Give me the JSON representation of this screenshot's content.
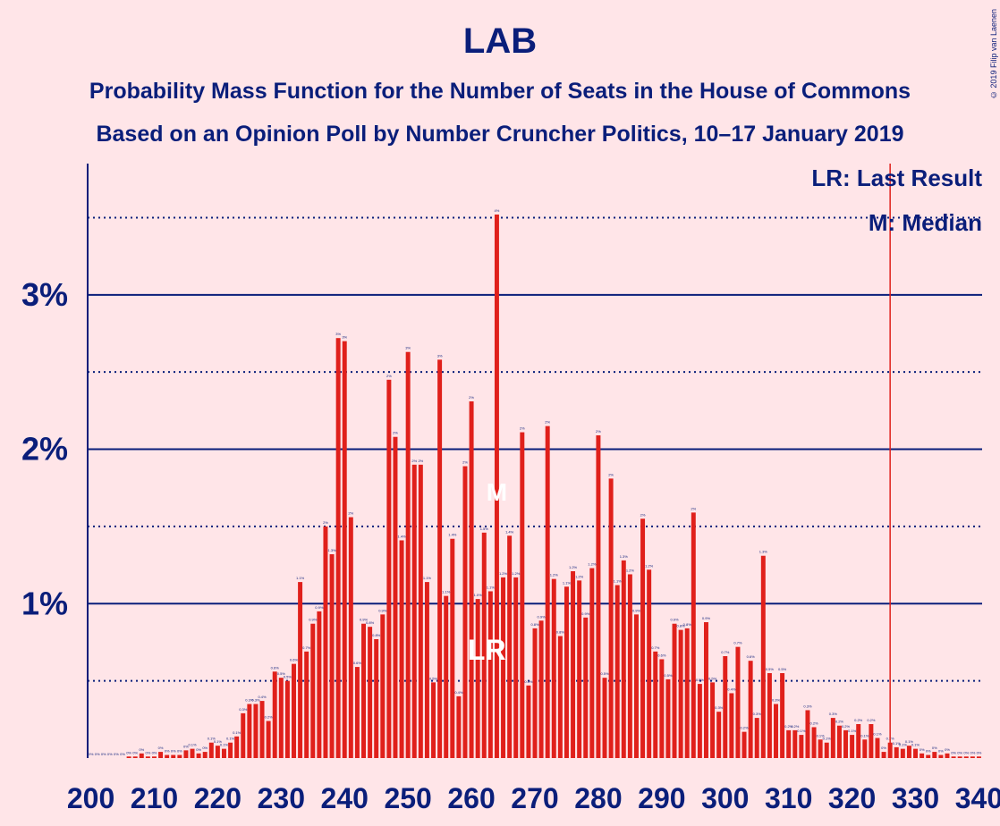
{
  "header": {
    "title": "LAB",
    "subtitle1": "Probability Mass Function for the Number of Seats in the House of Commons",
    "subtitle2": "Based on an Opinion Poll by Number Cruncher Politics, 10–17 January 2019",
    "copyright": "© 2019 Filip van Laenen"
  },
  "legend": {
    "last_result": "LR: Last Result",
    "median": "M: Median"
  },
  "colors": {
    "background": "#FFE5E8",
    "bar": "#E0201B",
    "axis": "#0A1E7A",
    "majority_line": "#E0201B"
  },
  "chart_data": {
    "type": "bar",
    "title": "LAB",
    "xlabel": "",
    "ylabel": "",
    "x": [
      200,
      201,
      202,
      203,
      204,
      205,
      206,
      207,
      208,
      209,
      210,
      211,
      212,
      213,
      214,
      215,
      216,
      217,
      218,
      219,
      220,
      221,
      222,
      223,
      224,
      225,
      226,
      227,
      228,
      229,
      230,
      231,
      232,
      233,
      234,
      235,
      236,
      237,
      238,
      239,
      240,
      241,
      242,
      243,
      244,
      245,
      246,
      247,
      248,
      249,
      250,
      251,
      252,
      253,
      254,
      255,
      256,
      257,
      258,
      259,
      260,
      261,
      262,
      263,
      264,
      265,
      266,
      267,
      268,
      269,
      270,
      271,
      272,
      273,
      274,
      275,
      276,
      277,
      278,
      279,
      280,
      281,
      282,
      283,
      284,
      285,
      286,
      287,
      288,
      289,
      290,
      291,
      292,
      293,
      294,
      295,
      296,
      297,
      298,
      299,
      300,
      301,
      302,
      303,
      304,
      305,
      306,
      307,
      308,
      309,
      310,
      311,
      312,
      313,
      314,
      315,
      316,
      317,
      318,
      319,
      320,
      321,
      322,
      323,
      324,
      325,
      326,
      327,
      328,
      329,
      330,
      331,
      332,
      333,
      334,
      335,
      336,
      337,
      338,
      339,
      340
    ],
    "values": [
      0,
      0,
      0,
      0,
      0,
      0,
      0.01,
      0.01,
      0.03,
      0.01,
      0.01,
      0.04,
      0.02,
      0.02,
      0.02,
      0.05,
      0.06,
      0.03,
      0.04,
      0.1,
      0.08,
      0.06,
      0.1,
      0.14,
      0.29,
      0.35,
      0.35,
      0.37,
      0.24,
      0.56,
      0.52,
      0.5,
      0.61,
      1.14,
      0.69,
      0.87,
      0.95,
      1.5,
      1.32,
      2.72,
      2.7,
      1.56,
      0.59,
      0.87,
      0.85,
      0.77,
      0.93,
      2.45,
      2.08,
      1.41,
      2.63,
      1.9,
      1.9,
      1.14,
      0.49,
      2.58,
      1.05,
      1.42,
      0.4,
      1.89,
      2.31,
      1.03,
      1.46,
      1.08,
      3.52,
      1.17,
      1.44,
      1.17,
      2.11,
      0.47,
      0.84,
      0.89,
      2.15,
      1.16,
      0.79,
      1.11,
      1.21,
      1.15,
      0.91,
      1.23,
      2.09,
      0.52,
      1.81,
      1.12,
      1.28,
      1.19,
      0.93,
      1.55,
      1.22,
      0.69,
      0.64,
      0.51,
      0.87,
      0.83,
      0.84,
      1.59,
      0.48,
      0.88,
      0.49,
      0.3,
      0.66,
      0.42,
      0.72,
      0.17,
      0.63,
      0.26,
      1.31,
      0.55,
      0.35,
      0.55,
      0.18,
      0.18,
      0.15,
      0.31,
      0.2,
      0.12,
      0.1,
      0.26,
      0.21,
      0.18,
      0.15,
      0.22,
      0.12,
      0.22,
      0.13,
      0.04,
      0.1,
      0.07,
      0.06,
      0.08,
      0.06,
      0.03,
      0.02,
      0.04,
      0.02,
      0.03,
      0.01,
      0.01,
      0.01,
      0.01,
      0.01
    ],
    "bar_labels": [
      "0%",
      "0%",
      "0%",
      "0%",
      "0%",
      "0%",
      "0%",
      "0%",
      "0%",
      "0%",
      "0%",
      "0%",
      "0%",
      "0%",
      "0%",
      "0%",
      "0.1%",
      "0%",
      "0%",
      "0.1%",
      "0.1%",
      "0.1%",
      "0.1%",
      "0.1%",
      "0.3%",
      "0.3%",
      "0.3%",
      "0.4%",
      "0.2%",
      "0.6%",
      "0.5%",
      "0.5%",
      "0.6%",
      "1.1%",
      "0.7%",
      "0.9%",
      "0.9%",
      "2%",
      "1.3%",
      "3%",
      "3%",
      "2%",
      "0.6%",
      "0.9%",
      "0.8%",
      "0.8%",
      "0.9%",
      "2%",
      "2%",
      "1.4%",
      "3%",
      "2%",
      "2%",
      "1.1%",
      "0.5%",
      "3%",
      "1.1%",
      "1.4%",
      "0.4%",
      "2%",
      "2%",
      "1.0%",
      "1.5%",
      "1.1%",
      "4%",
      "1.2%",
      "1.4%",
      "1.2%",
      "2%",
      "0.5%",
      "0.8%",
      "0.9%",
      "2%",
      "1.2%",
      "0.8%",
      "1.1%",
      "1.2%",
      "1.2%",
      "0.9%",
      "1.2%",
      "2%",
      "0.5%",
      "2%",
      "1.1%",
      "1.3%",
      "1.2%",
      "0.9%",
      "2%",
      "1.2%",
      "0.7%",
      "0.6%",
      "0.5%",
      "0.9%",
      "0.8%",
      "0.8%",
      "2%",
      "0.5%",
      "0.9%",
      "0.5%",
      "0.3%",
      "0.7%",
      "0.4%",
      "0.7%",
      "0.2%",
      "0.6%",
      "0.3%",
      "1.3%",
      "0.5%",
      "0.3%",
      "0.5%",
      "0.2%",
      "0.2%",
      "0.1%",
      "0.3%",
      "0.2%",
      "0.1%",
      "0.1%",
      "0.3%",
      "0.2%",
      "0.2%",
      "0.1%",
      "0.2%",
      "0.1%",
      "0.2%",
      "0.1%",
      "0%",
      "0.1%",
      "0.1%",
      "0.1%",
      "0.1%",
      "0.1%",
      "0%",
      "0%",
      "0%",
      "0%",
      "0%",
      "0%",
      "0%",
      "0%",
      "0%",
      "0%"
    ],
    "x_ticks": [
      200,
      210,
      220,
      230,
      240,
      250,
      260,
      270,
      280,
      290,
      300,
      310,
      320,
      330,
      340
    ],
    "x_tick_labels": [
      "200",
      "210",
      "220",
      "230",
      "240",
      "250",
      "260",
      "270",
      "280",
      "290",
      "300",
      "310",
      "320",
      "330",
      "340"
    ],
    "y_ticks": [
      1,
      2,
      3
    ],
    "y_tick_labels": [
      "1%",
      "2%",
      "3%"
    ],
    "y_minor_ticks": [
      0.5,
      1.5,
      2.5,
      3.5
    ],
    "ylim": [
      0,
      3.85
    ],
    "xlim": [
      199.5,
      340.5
    ],
    "last_result": {
      "x": 262,
      "label": "LR"
    },
    "median": {
      "x": 264,
      "label": "M"
    },
    "majority_line_x": 326,
    "legend_position": "top-right",
    "grid": true
  }
}
